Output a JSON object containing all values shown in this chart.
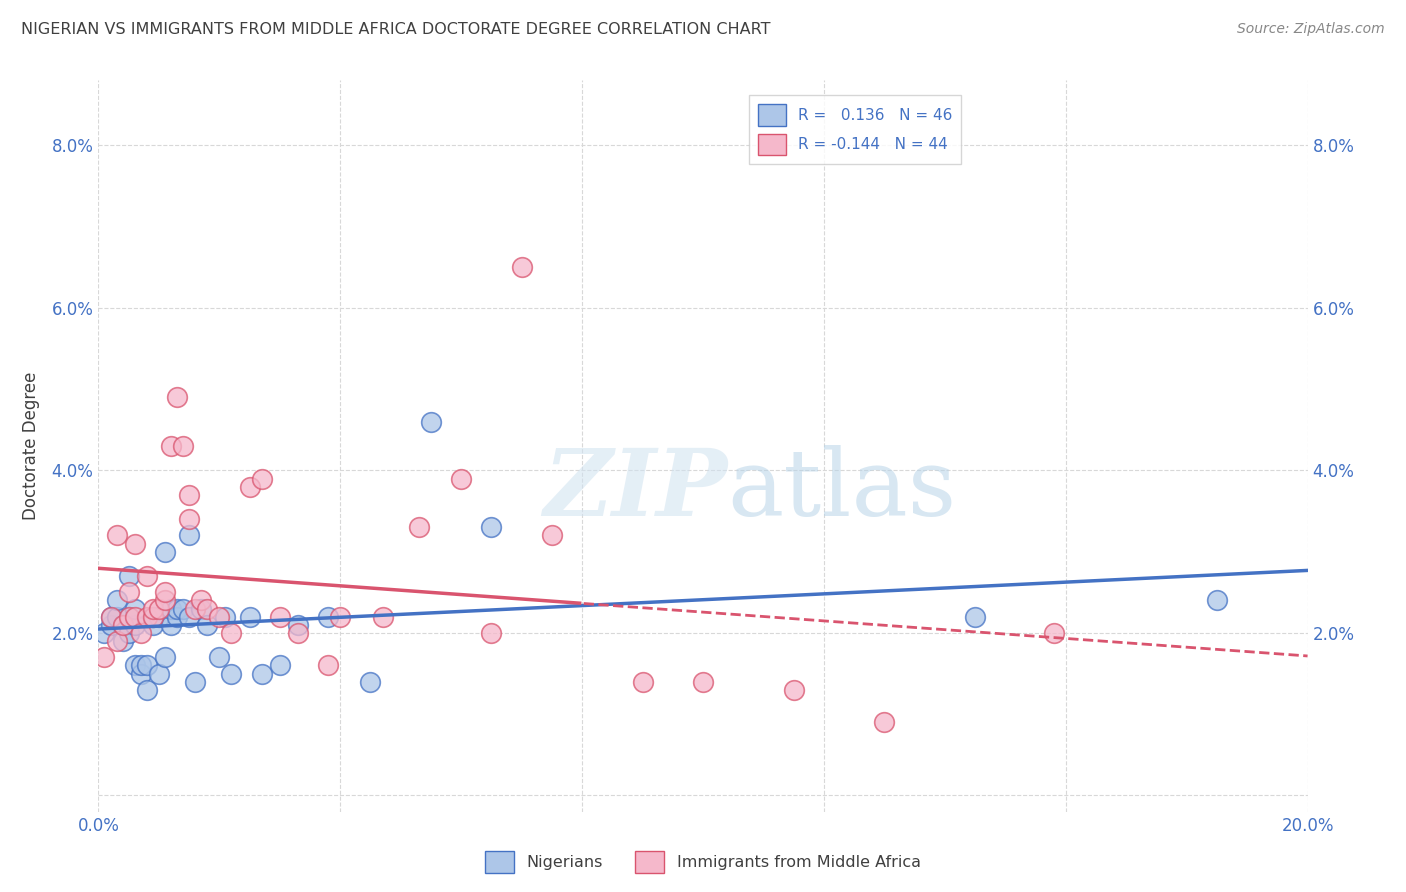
{
  "title": "NIGERIAN VS IMMIGRANTS FROM MIDDLE AFRICA DOCTORATE DEGREE CORRELATION CHART",
  "source": "Source: ZipAtlas.com",
  "ylabel": "Doctorate Degree",
  "xlim": [
    0.0,
    0.2
  ],
  "ylim": [
    -0.002,
    0.088
  ],
  "plot_ylim": [
    -0.002,
    0.088
  ],
  "yticks": [
    0.0,
    0.02,
    0.04,
    0.06,
    0.08
  ],
  "ytick_labels": [
    "",
    "2.0%",
    "4.0%",
    "6.0%",
    "8.0%"
  ],
  "xticks": [
    0.0,
    0.04,
    0.08,
    0.12,
    0.16,
    0.2
  ],
  "xtick_labels": [
    "0.0%",
    "",
    "",
    "",
    "",
    "20.0%"
  ],
  "nigerian_color": "#adc6e8",
  "immigrant_color": "#f5b8cb",
  "trend_nigerian_color": "#4472c4",
  "trend_immigrant_color": "#d9546e",
  "R_nigerian": 0.136,
  "N_nigerian": 46,
  "R_immigrant": -0.144,
  "N_immigrant": 44,
  "nigerian_x": [
    0.001,
    0.002,
    0.002,
    0.003,
    0.003,
    0.004,
    0.004,
    0.005,
    0.005,
    0.005,
    0.006,
    0.006,
    0.006,
    0.007,
    0.007,
    0.008,
    0.008,
    0.009,
    0.009,
    0.01,
    0.01,
    0.011,
    0.011,
    0.012,
    0.012,
    0.013,
    0.013,
    0.014,
    0.015,
    0.015,
    0.016,
    0.017,
    0.018,
    0.02,
    0.021,
    0.022,
    0.025,
    0.027,
    0.03,
    0.033,
    0.038,
    0.045,
    0.055,
    0.065,
    0.145,
    0.185
  ],
  "nigerian_y": [
    0.02,
    0.021,
    0.022,
    0.022,
    0.024,
    0.019,
    0.021,
    0.02,
    0.022,
    0.027,
    0.016,
    0.021,
    0.023,
    0.015,
    0.016,
    0.016,
    0.013,
    0.021,
    0.022,
    0.022,
    0.015,
    0.017,
    0.03,
    0.021,
    0.023,
    0.022,
    0.023,
    0.023,
    0.022,
    0.032,
    0.014,
    0.023,
    0.021,
    0.017,
    0.022,
    0.015,
    0.022,
    0.015,
    0.016,
    0.021,
    0.022,
    0.014,
    0.046,
    0.033,
    0.022,
    0.024
  ],
  "immigrant_x": [
    0.001,
    0.002,
    0.003,
    0.003,
    0.004,
    0.005,
    0.005,
    0.006,
    0.006,
    0.007,
    0.008,
    0.008,
    0.009,
    0.009,
    0.01,
    0.011,
    0.011,
    0.012,
    0.013,
    0.014,
    0.015,
    0.015,
    0.016,
    0.017,
    0.018,
    0.02,
    0.022,
    0.025,
    0.027,
    0.03,
    0.033,
    0.038,
    0.04,
    0.047,
    0.053,
    0.06,
    0.065,
    0.07,
    0.075,
    0.09,
    0.1,
    0.115,
    0.13,
    0.158
  ],
  "immigrant_y": [
    0.017,
    0.022,
    0.032,
    0.019,
    0.021,
    0.022,
    0.025,
    0.022,
    0.031,
    0.02,
    0.022,
    0.027,
    0.022,
    0.023,
    0.023,
    0.024,
    0.025,
    0.043,
    0.049,
    0.043,
    0.037,
    0.034,
    0.023,
    0.024,
    0.023,
    0.022,
    0.02,
    0.038,
    0.039,
    0.022,
    0.02,
    0.016,
    0.022,
    0.022,
    0.033,
    0.039,
    0.02,
    0.065,
    0.032,
    0.014,
    0.014,
    0.013,
    0.009,
    0.02
  ],
  "watermark_zip": "ZIP",
  "watermark_atlas": "atlas",
  "background_color": "#ffffff",
  "grid_color": "#d8d8d8",
  "title_color": "#404040",
  "tick_color": "#4472c4",
  "source_color": "#888888"
}
